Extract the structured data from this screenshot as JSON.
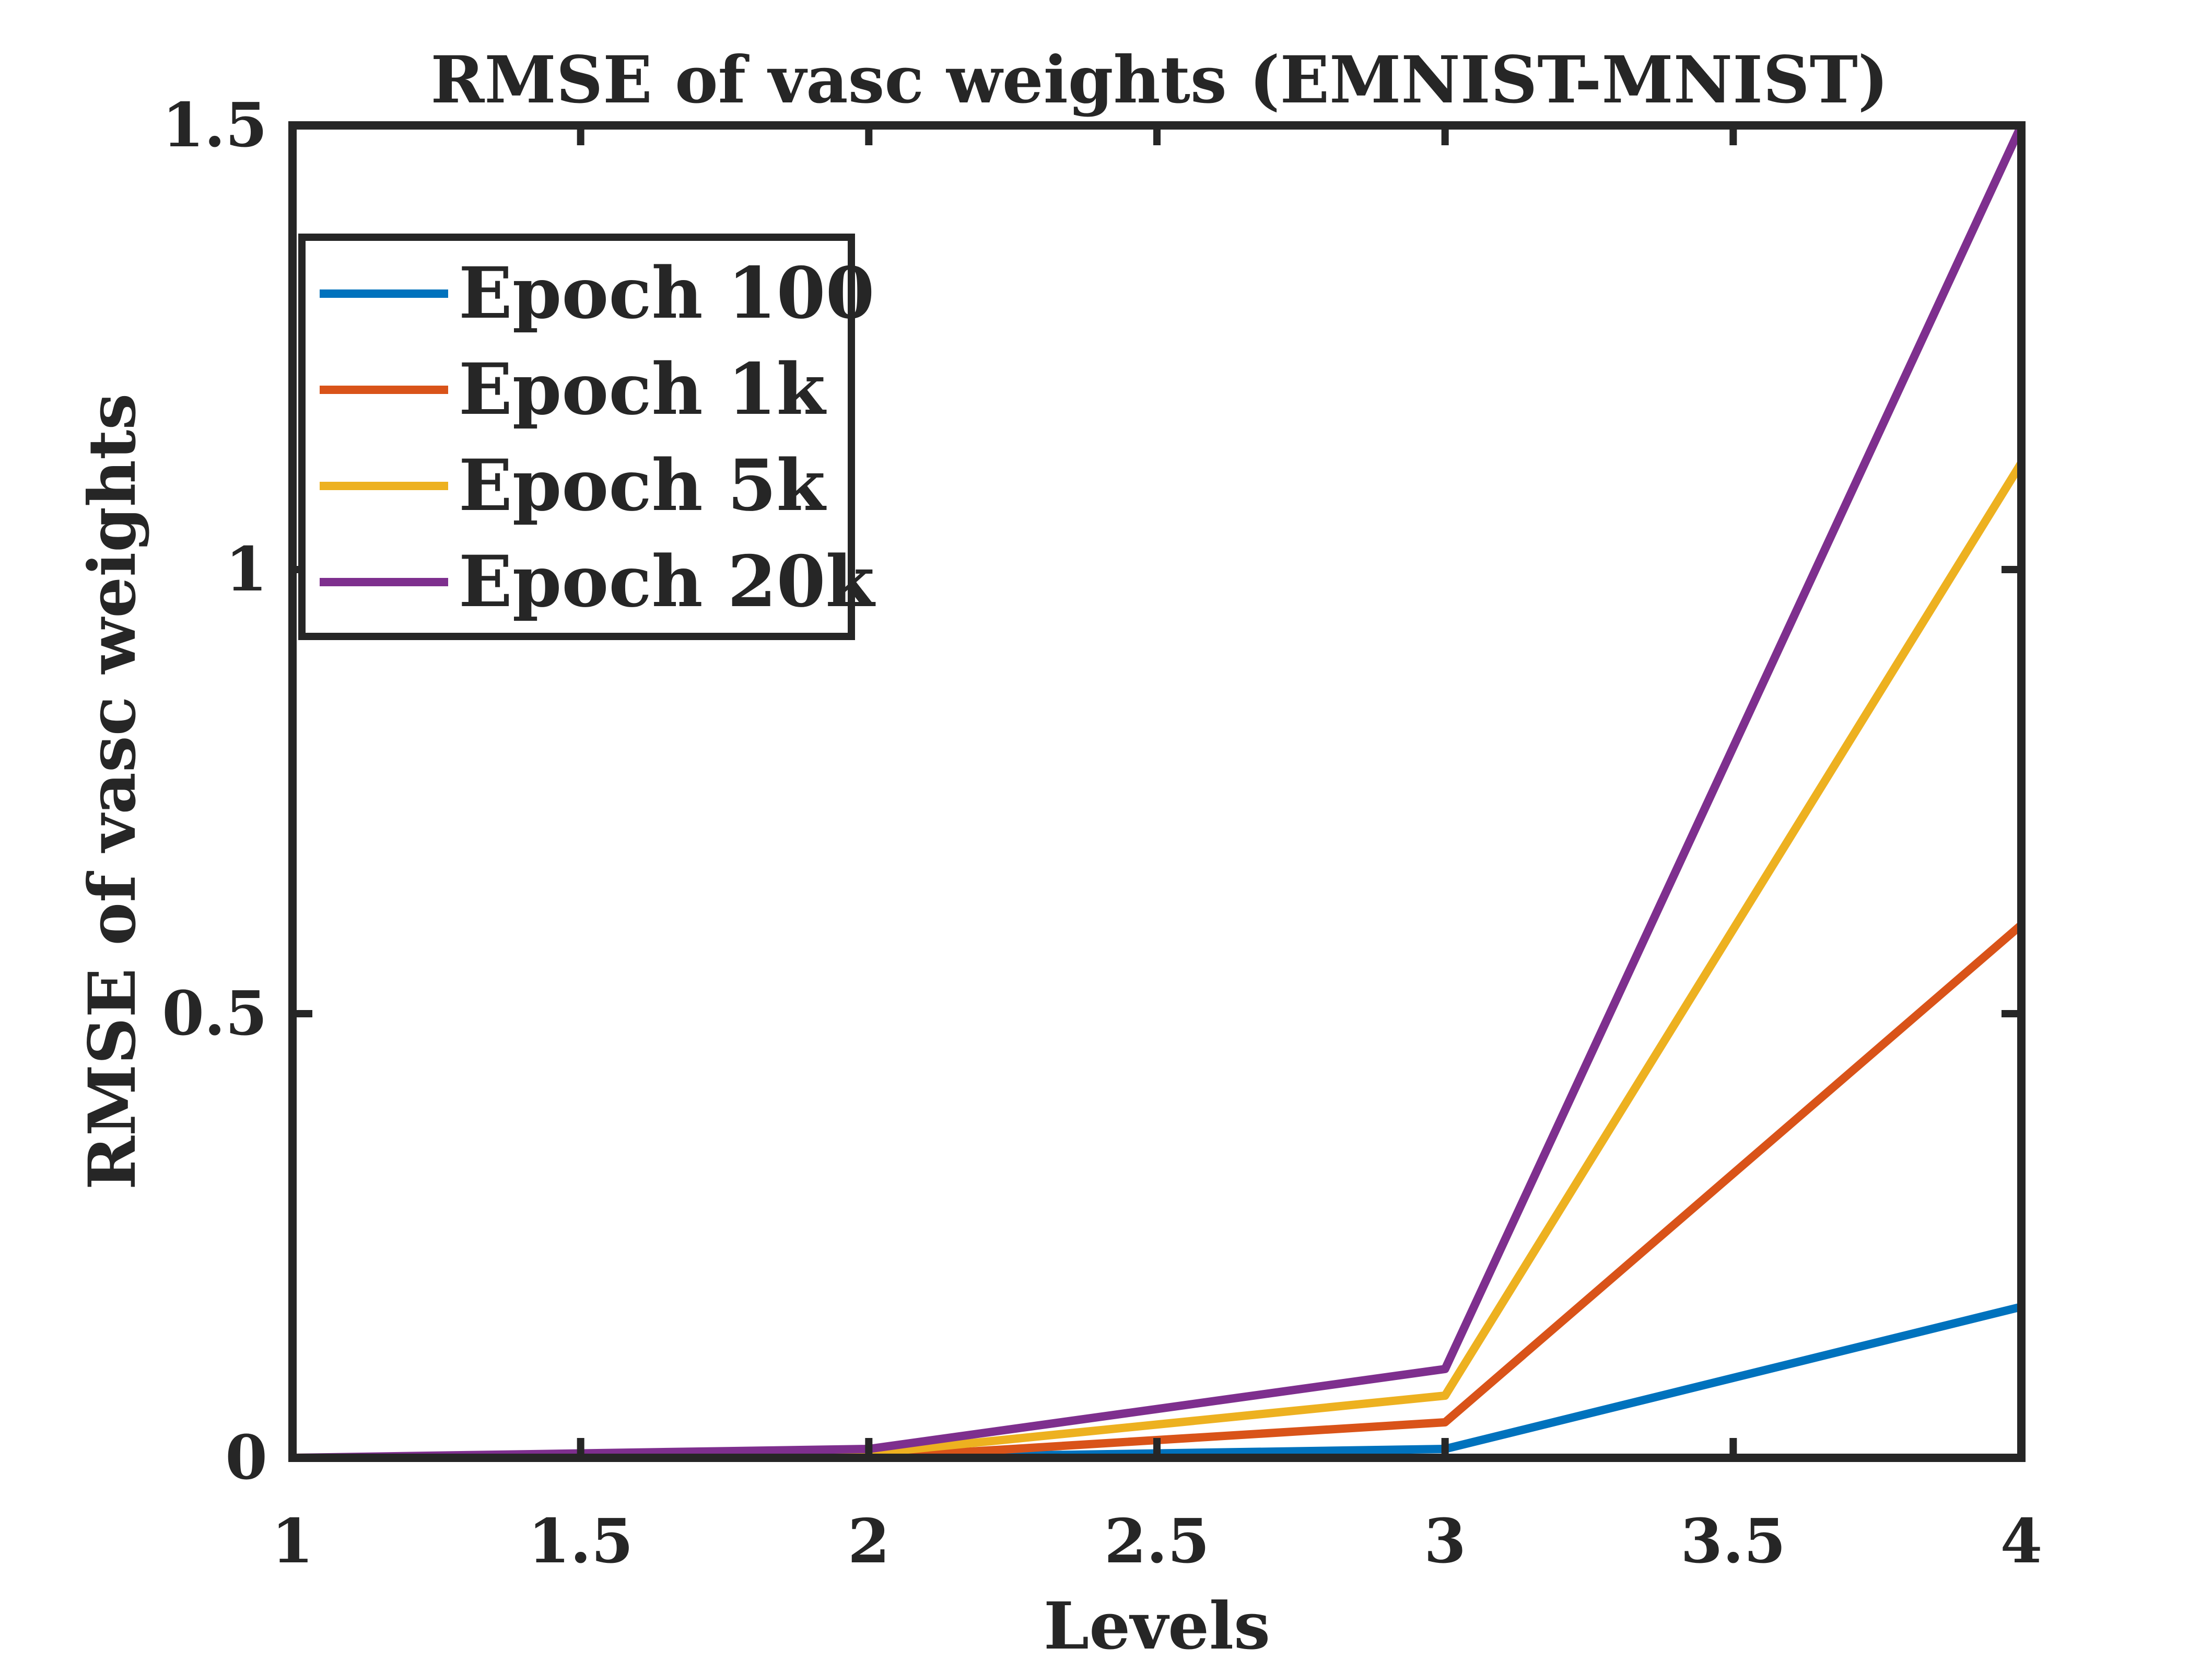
{
  "chart_data": {
    "type": "line",
    "title": "RMSE of vasc weights (EMNIST-MNIST)",
    "xlabel": "Levels",
    "ylabel": "RMSE of vasc weights",
    "xlim": [
      1,
      4
    ],
    "ylim": [
      0,
      1.5
    ],
    "xticks": [
      "1",
      "1.5",
      "2",
      "2.5",
      "3",
      "3.5",
      "4"
    ],
    "yticks": [
      "0",
      "0.5",
      "1",
      "1.5"
    ],
    "grid": false,
    "legend_position": "top-left",
    "x": [
      1,
      2,
      3,
      4
    ],
    "series": [
      {
        "name": "Epoch 100",
        "color": "#0072BD",
        "values": [
          0,
          0,
          0.01,
          0.17
        ]
      },
      {
        "name": "Epoch 1k",
        "color": "#D95319",
        "values": [
          0,
          0,
          0.04,
          0.6
        ]
      },
      {
        "name": "Epoch 5k",
        "color": "#EDB120",
        "values": [
          0,
          0.005,
          0.07,
          1.12
        ]
      },
      {
        "name": "Epoch 20k",
        "color": "#7E2F8E",
        "values": [
          0,
          0.01,
          0.1,
          1.5
        ]
      }
    ]
  }
}
